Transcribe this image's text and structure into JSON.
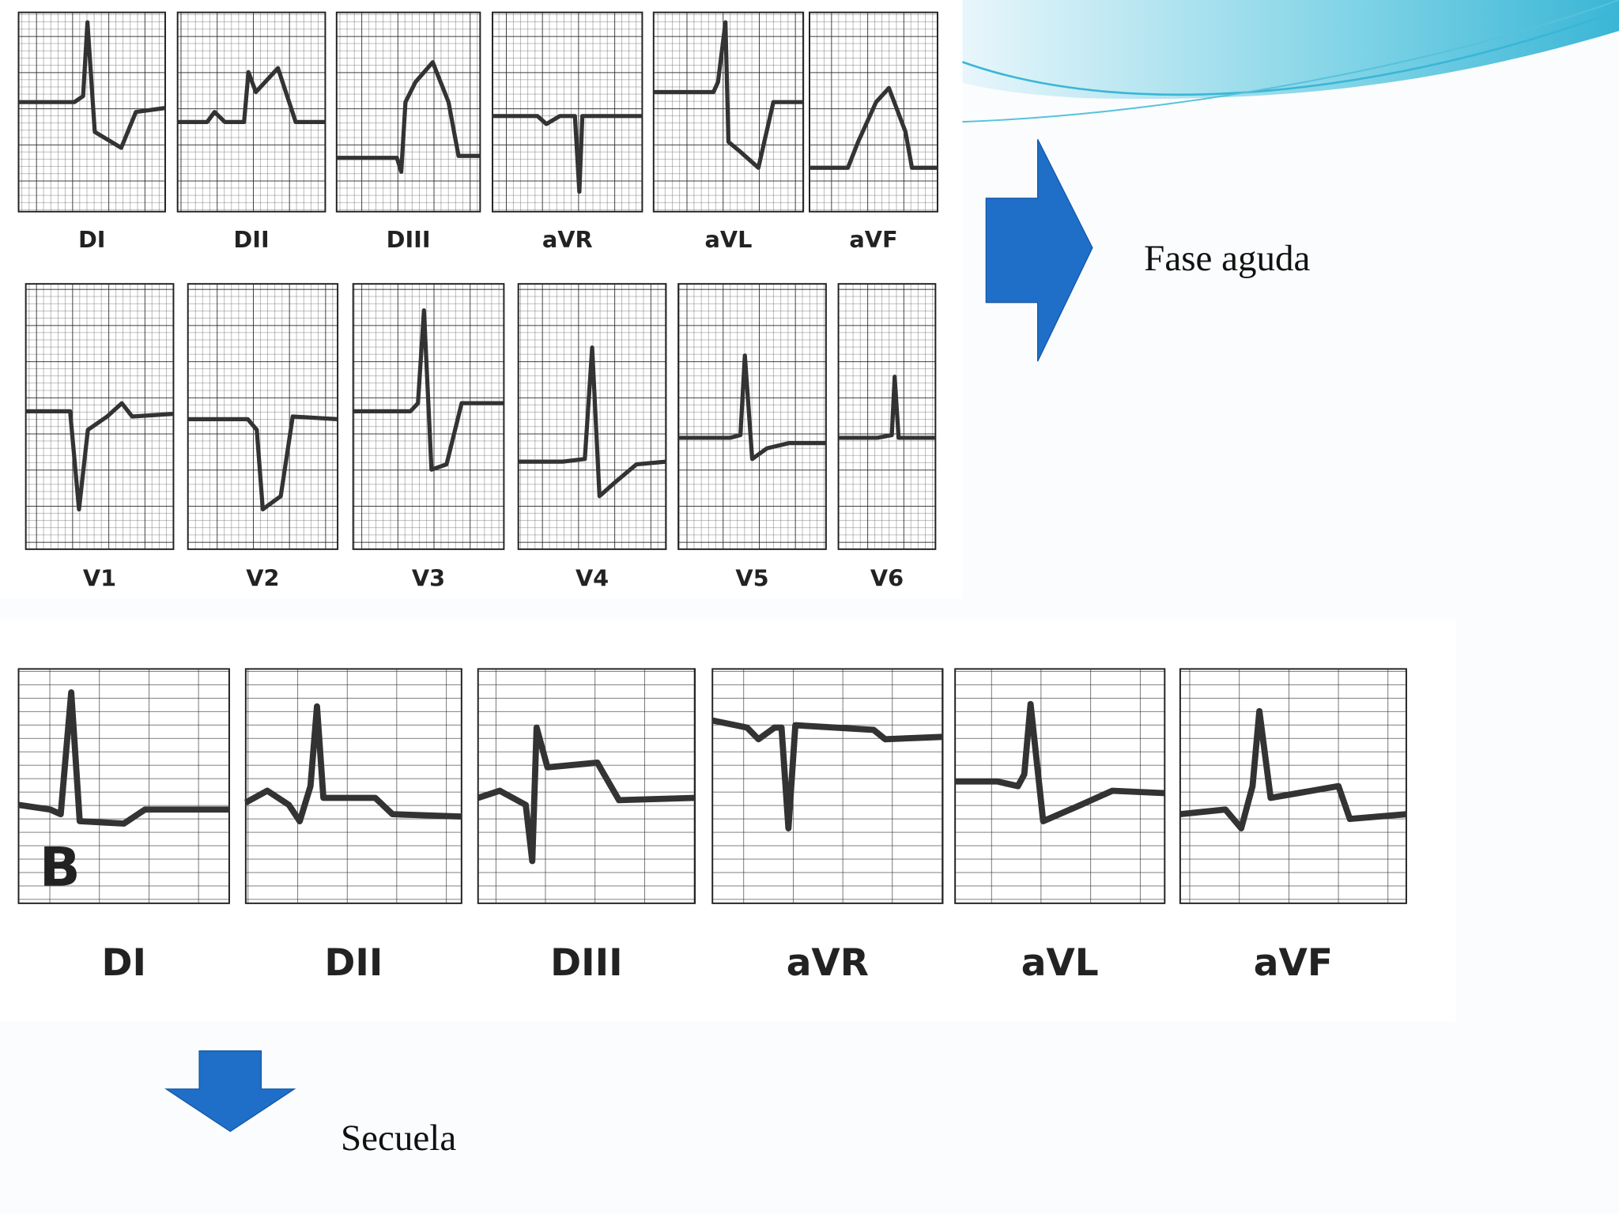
{
  "acute_ecg": {
    "limb_leads": [
      "DI",
      "DII",
      "DIII",
      "aVR",
      "aVL",
      "aVF"
    ],
    "chest_leads": [
      "V1",
      "V2",
      "V3",
      "V4",
      "V5",
      "V6"
    ]
  },
  "sequela_ecg": {
    "panel_label": "B",
    "limb_leads": [
      "DI",
      "DII",
      "DIII",
      "aVR",
      "aVL",
      "aVF"
    ]
  },
  "labels": {
    "acute": "Fase aguda",
    "sequela": "Secuela"
  }
}
